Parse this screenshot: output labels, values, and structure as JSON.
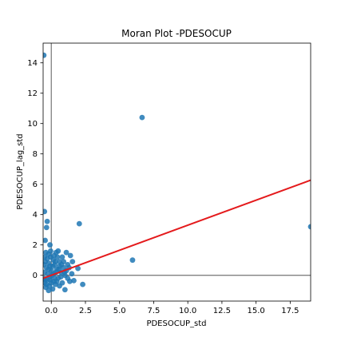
{
  "chart_data": {
    "type": "scatter",
    "title": "Moran Plot -PDESOCUP",
    "xlabel": "PDESOCUP_std",
    "ylabel": "PDESOCUP_lag_std",
    "xlim": [
      -0.6,
      19.0
    ],
    "ylim": [
      -1.7,
      15.3
    ],
    "x_ticks": [
      0.0,
      2.5,
      5.0,
      7.5,
      10.0,
      12.5,
      15.0,
      17.5
    ],
    "x_tick_labels": [
      "0.0",
      "2.5",
      "5.0",
      "7.5",
      "10.0",
      "12.5",
      "15.0",
      "17.5"
    ],
    "y_ticks": [
      0,
      2,
      4,
      6,
      8,
      10,
      12,
      14
    ],
    "y_tick_labels": [
      "0",
      "2",
      "4",
      "6",
      "8",
      "10",
      "12",
      "14"
    ],
    "grid": false,
    "reference_lines": {
      "x": 0,
      "y": 0
    },
    "regression_line": {
      "slope": 0.33,
      "intercept": 0.0,
      "color": "#e41a1c"
    },
    "point_color": "#1f77b4",
    "points": [
      {
        "x": -0.55,
        "y": 14.5
      },
      {
        "x": 6.65,
        "y": 10.4
      },
      {
        "x": 19.0,
        "y": 3.2
      },
      {
        "x": 5.95,
        "y": 1.0
      },
      {
        "x": 2.05,
        "y": 3.4
      },
      {
        "x": 2.3,
        "y": -0.6
      },
      {
        "x": -0.5,
        "y": 4.2
      },
      {
        "x": -0.3,
        "y": 3.55
      },
      {
        "x": -0.35,
        "y": 3.15
      },
      {
        "x": -0.45,
        "y": 2.3
      },
      {
        "x": -0.1,
        "y": 2.0
      },
      {
        "x": 1.95,
        "y": 0.45
      },
      {
        "x": 1.65,
        "y": -0.35
      },
      {
        "x": 1.4,
        "y": 1.3
      },
      {
        "x": 1.1,
        "y": 1.5
      },
      {
        "x": 1.55,
        "y": 0.9
      },
      {
        "x": 1.35,
        "y": -0.4
      },
      {
        "x": 1.0,
        "y": -0.95
      },
      {
        "x": 0.5,
        "y": 1.6
      },
      {
        "x": 0.35,
        "y": 1.5
      },
      {
        "x": 0.2,
        "y": 1.3
      },
      {
        "x": -0.05,
        "y": 1.6
      },
      {
        "x": -0.2,
        "y": 1.4
      },
      {
        "x": -0.4,
        "y": 1.5
      },
      {
        "x": -0.5,
        "y": 1.2
      },
      {
        "x": 0.8,
        "y": 1.2
      },
      {
        "x": 0.6,
        "y": 0.9
      },
      {
        "x": 1.2,
        "y": 0.7
      },
      {
        "x": 0.9,
        "y": 0.5
      },
      {
        "x": 0.7,
        "y": 0.2
      },
      {
        "x": 1.0,
        "y": 0.0
      },
      {
        "x": 0.5,
        "y": -0.2
      },
      {
        "x": 0.8,
        "y": -0.5
      },
      {
        "x": 0.3,
        "y": -0.6
      },
      {
        "x": 0.1,
        "y": -0.9
      },
      {
        "x": -0.2,
        "y": -1.0
      },
      {
        "x": -0.4,
        "y": -0.8
      },
      {
        "x": -0.5,
        "y": -0.5
      },
      {
        "x": -0.3,
        "y": -0.3
      },
      {
        "x": -0.1,
        "y": -0.1
      },
      {
        "x": 0.2,
        "y": 0.1
      },
      {
        "x": 0.4,
        "y": 0.4
      },
      {
        "x": 0.1,
        "y": 0.6
      },
      {
        "x": -0.2,
        "y": 0.8
      },
      {
        "x": -0.45,
        "y": 0.9
      },
      {
        "x": -0.35,
        "y": 0.5
      },
      {
        "x": -0.5,
        "y": 0.2
      },
      {
        "x": -0.25,
        "y": 0.1
      },
      {
        "x": 0.0,
        "y": 0.3
      },
      {
        "x": 0.3,
        "y": 0.9
      },
      {
        "x": 0.6,
        "y": 0.6
      },
      {
        "x": 0.9,
        "y": 0.9
      },
      {
        "x": 0.4,
        "y": -0.4
      },
      {
        "x": 0.0,
        "y": -0.5
      },
      {
        "x": -0.15,
        "y": -0.7
      },
      {
        "x": 0.25,
        "y": -0.2
      },
      {
        "x": 0.7,
        "y": -0.1
      },
      {
        "x": 1.1,
        "y": 0.3
      },
      {
        "x": 1.3,
        "y": 0.5
      },
      {
        "x": 1.5,
        "y": 0.1
      },
      {
        "x": 0.15,
        "y": 1.0
      },
      {
        "x": -0.05,
        "y": 1.2
      },
      {
        "x": -0.3,
        "y": 1.1
      },
      {
        "x": -0.55,
        "y": 0.7
      },
      {
        "x": -0.55,
        "y": -0.2
      },
      {
        "x": -0.45,
        "y": -0.3
      },
      {
        "x": -0.2,
        "y": 0.4
      },
      {
        "x": 0.05,
        "y": 0.0
      },
      {
        "x": 0.35,
        "y": 0.2
      },
      {
        "x": 0.55,
        "y": 0.4
      },
      {
        "x": 0.75,
        "y": 0.7
      },
      {
        "x": 0.95,
        "y": 0.2
      },
      {
        "x": 1.2,
        "y": -0.2
      },
      {
        "x": 0.6,
        "y": -0.7
      },
      {
        "x": 0.2,
        "y": -0.4
      },
      {
        "x": -0.1,
        "y": -0.3
      },
      {
        "x": -0.35,
        "y": -0.6
      },
      {
        "x": 0.45,
        "y": 1.2
      },
      {
        "x": 0.25,
        "y": 0.7
      },
      {
        "x": -0.1,
        "y": 0.6
      }
    ]
  }
}
